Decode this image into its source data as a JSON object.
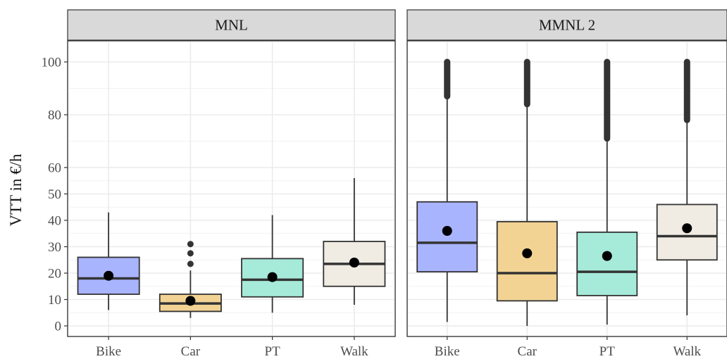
{
  "chart_data": {
    "type": "boxplot",
    "ylabel": "VTT in €/h",
    "ylim": [
      -4,
      108
    ],
    "yticks": [
      0,
      10,
      20,
      30,
      40,
      50,
      60,
      80,
      100
    ],
    "categories": [
      "Bike",
      "Car",
      "PT",
      "Walk"
    ],
    "colors": {
      "Bike": "#a9b4ff",
      "Car": "#f2d394",
      "PT": "#a6eada",
      "Walk": "#f0ebe3"
    },
    "grid": true,
    "panels": [
      {
        "name": "MNL",
        "boxes": [
          {
            "category": "Bike",
            "whisker_low": 6,
            "q1": 12,
            "median": 18,
            "q3": 26,
            "whisker_high": 43,
            "mean": 19,
            "outliers": []
          },
          {
            "category": "Car",
            "whisker_low": 3,
            "q1": 5.5,
            "median": 8.5,
            "q3": 12,
            "whisker_high": 21,
            "mean": 9.5,
            "outliers": [
              23.5,
              27.5,
              31
            ]
          },
          {
            "category": "PT",
            "whisker_low": 5,
            "q1": 11,
            "median": 17.5,
            "q3": 25.5,
            "whisker_high": 42,
            "mean": 18.5,
            "outliers": []
          },
          {
            "category": "Walk",
            "whisker_low": 8,
            "q1": 15,
            "median": 23.5,
            "q3": 32,
            "whisker_high": 56,
            "mean": 24,
            "outliers": []
          }
        ]
      },
      {
        "name": "MMNL 2",
        "boxes": [
          {
            "category": "Bike",
            "whisker_low": 1.5,
            "q1": 20.5,
            "median": 31.5,
            "q3": 47,
            "whisker_high": 87,
            "mean": 36,
            "outliers_range": [
              87,
              100
            ]
          },
          {
            "category": "Car",
            "whisker_low": 0,
            "q1": 9.5,
            "median": 20,
            "q3": 39.5,
            "whisker_high": 84,
            "mean": 27.5,
            "outliers_range": [
              84,
              100
            ]
          },
          {
            "category": "PT",
            "whisker_low": 0.5,
            "q1": 11.5,
            "median": 20.5,
            "q3": 35.5,
            "whisker_high": 71,
            "mean": 26.5,
            "outliers_range": [
              71,
              100
            ]
          },
          {
            "category": "Walk",
            "whisker_low": 4,
            "q1": 25,
            "median": 34,
            "q3": 46,
            "whisker_high": 78,
            "mean": 37,
            "outliers_range": [
              78,
              100
            ]
          }
        ]
      }
    ]
  }
}
